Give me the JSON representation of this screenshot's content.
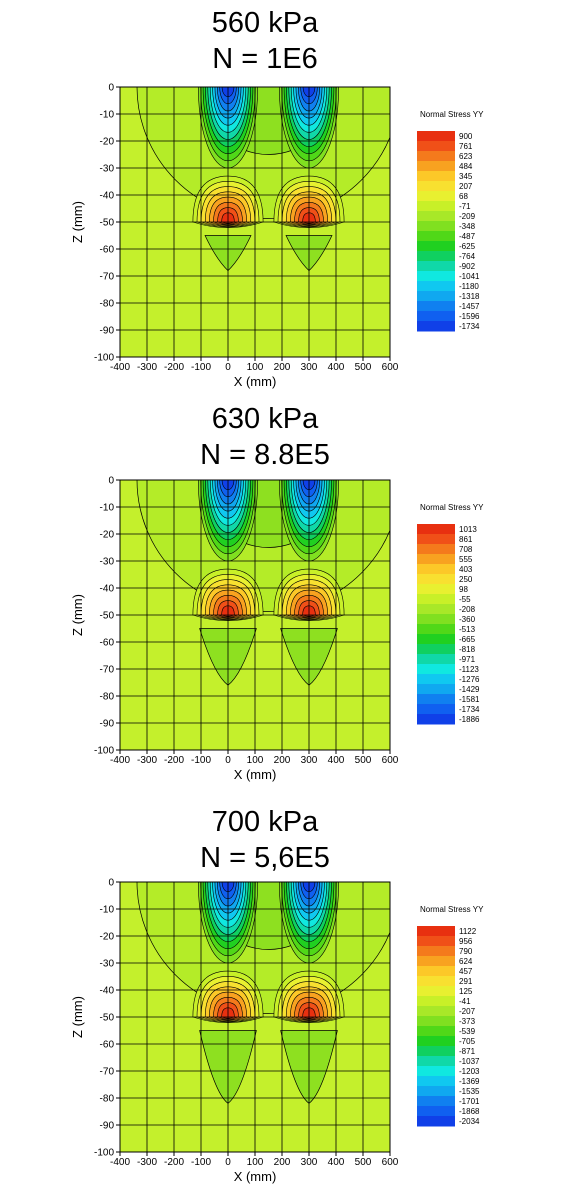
{
  "chart_data": [
    {
      "type": "contour",
      "title_line1": "560 kPa",
      "title_line2": "N = 1E6",
      "xlabel": "X (mm)",
      "ylabel": "Z (mm)",
      "xlim": [
        -400,
        600
      ],
      "ylim": [
        -100,
        0
      ],
      "x_ticks": [
        "-400",
        "-300",
        "-200",
        "-100",
        "0",
        "100",
        "200",
        "300",
        "400",
        "500",
        "600"
      ],
      "y_ticks": [
        "0",
        "-10",
        "-20",
        "-30",
        "-40",
        "-50",
        "-60",
        "-70",
        "-80",
        "-90",
        "-100"
      ],
      "grid": true,
      "legend_title": "Normal Stress YY",
      "legend_levels": [
        "900",
        "761",
        "623",
        "484",
        "345",
        "207",
        "68",
        "-71",
        "-209",
        "-348",
        "-487",
        "-625",
        "-764",
        "-902",
        "-1041",
        "-1180",
        "-1318",
        "-1457",
        "-1596",
        "-1734"
      ],
      "legend_position": "right",
      "wheel_centers_x": [
        0,
        300
      ],
      "lower_lobe_depth": -68
    },
    {
      "type": "contour",
      "title_line1": "630 kPa",
      "title_line2": "N = 8.8E5",
      "xlabel": "X (mm)",
      "ylabel": "Z (mm)",
      "xlim": [
        -400,
        600
      ],
      "ylim": [
        -100,
        0
      ],
      "x_ticks": [
        "-400",
        "-300",
        "-200",
        "-100",
        "0",
        "100",
        "200",
        "300",
        "400",
        "500",
        "600"
      ],
      "y_ticks": [
        "0",
        "-10",
        "-20",
        "-30",
        "-40",
        "-50",
        "-60",
        "-70",
        "-80",
        "-90",
        "-100"
      ],
      "grid": true,
      "legend_title": "Normal Stress YY",
      "legend_levels": [
        "1013",
        "861",
        "708",
        "555",
        "403",
        "250",
        "98",
        "-55",
        "-208",
        "-360",
        "-513",
        "-665",
        "-818",
        "-971",
        "-1123",
        "-1276",
        "-1429",
        "-1581",
        "-1734",
        "-1886"
      ],
      "legend_position": "right",
      "wheel_centers_x": [
        0,
        300
      ],
      "lower_lobe_depth": -76
    },
    {
      "type": "contour",
      "title_line1": "700 kPa",
      "title_line2": "N = 5,6E5",
      "xlabel": "X (mm)",
      "ylabel": "Z (mm)",
      "xlim": [
        -400,
        600
      ],
      "ylim": [
        -100,
        0
      ],
      "x_ticks": [
        "-400",
        "-300",
        "-200",
        "-100",
        "0",
        "100",
        "200",
        "300",
        "400",
        "500",
        "600"
      ],
      "y_ticks": [
        "0",
        "-10",
        "-20",
        "-30",
        "-40",
        "-50",
        "-60",
        "-70",
        "-80",
        "-90",
        "-100"
      ],
      "grid": true,
      "legend_title": "Normal Stress YY",
      "legend_levels": [
        "1122",
        "956",
        "790",
        "624",
        "457",
        "291",
        "125",
        "-41",
        "-207",
        "-373",
        "-539",
        "-705",
        "-871",
        "-1037",
        "-1203",
        "-1369",
        "-1535",
        "-1701",
        "-1868",
        "-2034"
      ],
      "legend_position": "right",
      "wheel_centers_x": [
        0,
        300
      ],
      "lower_lobe_depth": -82
    }
  ],
  "colors": {
    "scale": [
      "#e83010",
      "#f05018",
      "#f47a1c",
      "#f8a220",
      "#fcc828",
      "#f8e030",
      "#e8f030",
      "#c8f028",
      "#a8e828",
      "#80e020",
      "#50d818",
      "#20d020",
      "#10d060",
      "#10d8a8",
      "#10e8e0",
      "#10c8f0",
      "#10a8f0",
      "#1080f0",
      "#1060f0",
      "#1040e8"
    ],
    "background_field": "#c4f02c"
  }
}
